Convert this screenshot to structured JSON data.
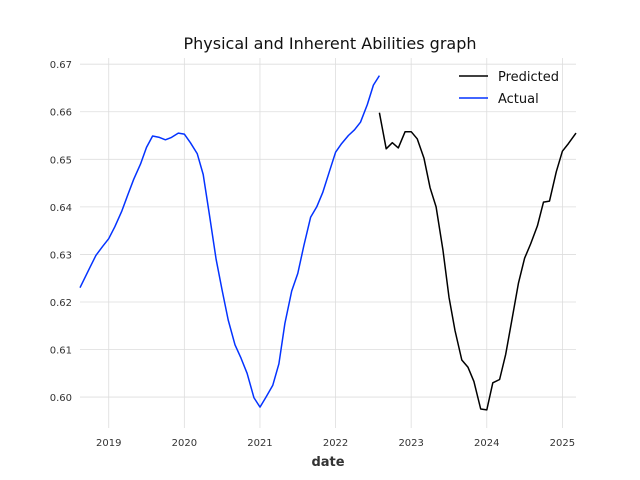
{
  "chart_data": {
    "type": "line",
    "title": "Physical and Inherent Abilities graph",
    "xlabel": "date",
    "ylabel": "",
    "xlim": [
      2018.62,
      2025.18
    ],
    "ylim": [
      0.5935,
      0.6713
    ],
    "x_ticks": [
      {
        "value": 2019,
        "label": "2019"
      },
      {
        "value": 2020,
        "label": "2020"
      },
      {
        "value": 2021,
        "label": "2021"
      },
      {
        "value": 2022,
        "label": "2022"
      },
      {
        "value": 2023,
        "label": "2023"
      },
      {
        "value": 2024,
        "label": "2024"
      },
      {
        "value": 2025,
        "label": "2025"
      }
    ],
    "y_ticks": [
      {
        "value": 0.6,
        "label": "0.60"
      },
      {
        "value": 0.61,
        "label": "0.61"
      },
      {
        "value": 0.62,
        "label": "0.62"
      },
      {
        "value": 0.63,
        "label": "0.63"
      },
      {
        "value": 0.64,
        "label": "0.64"
      },
      {
        "value": 0.65,
        "label": "0.65"
      },
      {
        "value": 0.66,
        "label": "0.66"
      },
      {
        "value": 0.67,
        "label": "0.67"
      }
    ],
    "grid": true,
    "legend": "top-right",
    "series": [
      {
        "name": "Predicted",
        "color": "#000000",
        "points": [
          [
            2022.58,
            0.6598
          ],
          [
            2022.67,
            0.6522
          ],
          [
            2022.75,
            0.6535
          ],
          [
            2022.83,
            0.6524
          ],
          [
            2022.92,
            0.6558
          ],
          [
            2023.0,
            0.6558
          ],
          [
            2023.08,
            0.6543
          ],
          [
            2023.17,
            0.6502
          ],
          [
            2023.25,
            0.644
          ],
          [
            2023.33,
            0.64
          ],
          [
            2023.42,
            0.631
          ],
          [
            2023.5,
            0.621
          ],
          [
            2023.58,
            0.614
          ],
          [
            2023.67,
            0.6078
          ],
          [
            2023.75,
            0.6063
          ],
          [
            2023.83,
            0.6033
          ],
          [
            2023.92,
            0.5975
          ],
          [
            2024.0,
            0.5973
          ],
          [
            2024.08,
            0.603
          ],
          [
            2024.17,
            0.6037
          ],
          [
            2024.25,
            0.609
          ],
          [
            2024.33,
            0.616
          ],
          [
            2024.42,
            0.624
          ],
          [
            2024.5,
            0.6292
          ],
          [
            2024.58,
            0.6322
          ],
          [
            2024.67,
            0.636
          ],
          [
            2024.75,
            0.641
          ],
          [
            2024.83,
            0.6412
          ],
          [
            2024.92,
            0.6474
          ],
          [
            2025.0,
            0.6517
          ],
          [
            2025.08,
            0.6533
          ],
          [
            2025.18,
            0.6555
          ]
        ]
      },
      {
        "name": "Actual",
        "color": "#0433ff",
        "points": [
          [
            2018.62,
            0.623
          ],
          [
            2018.75,
            0.6272
          ],
          [
            2018.83,
            0.6298
          ],
          [
            2018.92,
            0.6317
          ],
          [
            2019.0,
            0.6333
          ],
          [
            2019.08,
            0.6358
          ],
          [
            2019.17,
            0.639
          ],
          [
            2019.25,
            0.6424
          ],
          [
            2019.33,
            0.6458
          ],
          [
            2019.42,
            0.649
          ],
          [
            2019.5,
            0.6525
          ],
          [
            2019.58,
            0.6549
          ],
          [
            2019.67,
            0.6546
          ],
          [
            2019.75,
            0.6541
          ],
          [
            2019.83,
            0.6546
          ],
          [
            2019.92,
            0.6555
          ],
          [
            2020.0,
            0.6553
          ],
          [
            2020.08,
            0.6535
          ],
          [
            2020.17,
            0.6512
          ],
          [
            2020.25,
            0.6468
          ],
          [
            2020.33,
            0.6385
          ],
          [
            2020.42,
            0.629
          ],
          [
            2020.5,
            0.6225
          ],
          [
            2020.58,
            0.6162
          ],
          [
            2020.67,
            0.611
          ],
          [
            2020.75,
            0.6082
          ],
          [
            2020.83,
            0.605
          ],
          [
            2020.92,
            0.5999
          ],
          [
            2021.0,
            0.5979
          ],
          [
            2021.08,
            0.6
          ],
          [
            2021.17,
            0.6025
          ],
          [
            2021.25,
            0.607
          ],
          [
            2021.33,
            0.6155
          ],
          [
            2021.42,
            0.6223
          ],
          [
            2021.5,
            0.626
          ],
          [
            2021.58,
            0.6318
          ],
          [
            2021.67,
            0.6378
          ],
          [
            2021.75,
            0.64
          ],
          [
            2021.83,
            0.643
          ],
          [
            2021.92,
            0.6475
          ],
          [
            2022.0,
            0.6515
          ],
          [
            2022.08,
            0.6533
          ],
          [
            2022.17,
            0.655
          ],
          [
            2022.25,
            0.6562
          ],
          [
            2022.33,
            0.6578
          ],
          [
            2022.42,
            0.6615
          ],
          [
            2022.5,
            0.6656
          ],
          [
            2022.58,
            0.6676
          ]
        ]
      }
    ]
  }
}
